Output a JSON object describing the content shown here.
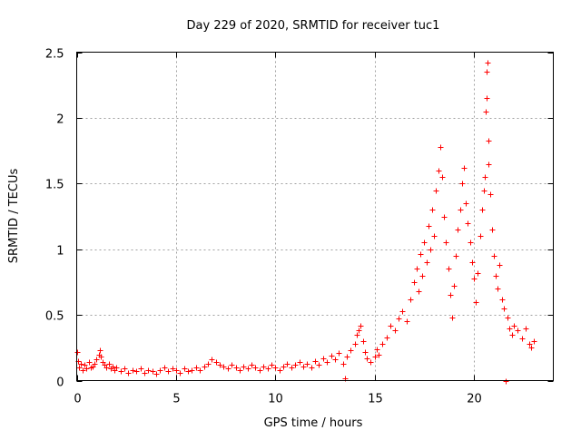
{
  "chart_data": {
    "type": "scatter",
    "title": "Day 229 of 2020, SRMTID for receiver tuc1",
    "xlabel": "GPS time / hours",
    "ylabel": "SRMTID / TECUs",
    "xlim": [
      0,
      24
    ],
    "ylim": [
      0,
      2.5
    ],
    "x_ticks": [
      0,
      5,
      10,
      15,
      20
    ],
    "y_ticks": [
      0,
      0.5,
      1,
      1.5,
      2,
      2.5
    ],
    "x_tick_labels": [
      "0",
      "5",
      "10",
      "15",
      "20"
    ],
    "y_tick_labels": [
      "0",
      "0.5",
      "1",
      "1.5",
      "2",
      "2.5"
    ],
    "grid": true,
    "marker": "+",
    "series_color": "#ff0000",
    "series": [
      {
        "name": "SRMTID",
        "points": [
          [
            0.0,
            0.22
          ],
          [
            0.05,
            0.15
          ],
          [
            0.1,
            0.1
          ],
          [
            0.2,
            0.13
          ],
          [
            0.3,
            0.08
          ],
          [
            0.4,
            0.12
          ],
          [
            0.5,
            0.09
          ],
          [
            0.6,
            0.14
          ],
          [
            0.7,
            0.1
          ],
          [
            0.8,
            0.11
          ],
          [
            0.9,
            0.13
          ],
          [
            1.0,
            0.16
          ],
          [
            1.1,
            0.2
          ],
          [
            1.15,
            0.23
          ],
          [
            1.2,
            0.18
          ],
          [
            1.3,
            0.14
          ],
          [
            1.4,
            0.12
          ],
          [
            1.5,
            0.1
          ],
          [
            1.6,
            0.13
          ],
          [
            1.7,
            0.09
          ],
          [
            1.8,
            0.11
          ],
          [
            1.9,
            0.08
          ],
          [
            2.0,
            0.1
          ],
          [
            2.2,
            0.07
          ],
          [
            2.4,
            0.09
          ],
          [
            2.6,
            0.06
          ],
          [
            2.8,
            0.08
          ],
          [
            3.0,
            0.07
          ],
          [
            3.2,
            0.09
          ],
          [
            3.4,
            0.06
          ],
          [
            3.6,
            0.08
          ],
          [
            3.8,
            0.07
          ],
          [
            4.0,
            0.05
          ],
          [
            4.2,
            0.08
          ],
          [
            4.4,
            0.1
          ],
          [
            4.6,
            0.07
          ],
          [
            4.8,
            0.09
          ],
          [
            5.0,
            0.08
          ],
          [
            5.2,
            0.06
          ],
          [
            5.4,
            0.09
          ],
          [
            5.6,
            0.07
          ],
          [
            5.8,
            0.08
          ],
          [
            6.0,
            0.1
          ],
          [
            6.2,
            0.08
          ],
          [
            6.4,
            0.11
          ],
          [
            6.6,
            0.13
          ],
          [
            6.8,
            0.16
          ],
          [
            7.0,
            0.14
          ],
          [
            7.2,
            0.12
          ],
          [
            7.4,
            0.11
          ],
          [
            7.6,
            0.09
          ],
          [
            7.8,
            0.12
          ],
          [
            8.0,
            0.1
          ],
          [
            8.2,
            0.08
          ],
          [
            8.4,
            0.11
          ],
          [
            8.6,
            0.09
          ],
          [
            8.8,
            0.12
          ],
          [
            9.0,
            0.1
          ],
          [
            9.2,
            0.08
          ],
          [
            9.4,
            0.11
          ],
          [
            9.6,
            0.09
          ],
          [
            9.8,
            0.12
          ],
          [
            10.0,
            0.1
          ],
          [
            10.2,
            0.08
          ],
          [
            10.4,
            0.11
          ],
          [
            10.6,
            0.13
          ],
          [
            10.8,
            0.1
          ],
          [
            11.0,
            0.12
          ],
          [
            11.2,
            0.14
          ],
          [
            11.4,
            0.11
          ],
          [
            11.6,
            0.13
          ],
          [
            11.8,
            0.1
          ],
          [
            12.0,
            0.15
          ],
          [
            12.2,
            0.12
          ],
          [
            12.4,
            0.17
          ],
          [
            12.6,
            0.14
          ],
          [
            12.8,
            0.19
          ],
          [
            13.0,
            0.16
          ],
          [
            13.2,
            0.21
          ],
          [
            13.4,
            0.13
          ],
          [
            13.5,
            0.02
          ],
          [
            13.6,
            0.18
          ],
          [
            13.8,
            0.23
          ],
          [
            14.0,
            0.28
          ],
          [
            14.1,
            0.35
          ],
          [
            14.2,
            0.38
          ],
          [
            14.3,
            0.42
          ],
          [
            14.4,
            0.3
          ],
          [
            14.5,
            0.22
          ],
          [
            14.6,
            0.17
          ],
          [
            14.8,
            0.14
          ],
          [
            15.0,
            0.18
          ],
          [
            15.1,
            0.24
          ],
          [
            15.2,
            0.2
          ],
          [
            15.4,
            0.28
          ],
          [
            15.6,
            0.33
          ],
          [
            15.8,
            0.42
          ],
          [
            16.0,
            0.38
          ],
          [
            16.2,
            0.47
          ],
          [
            16.4,
            0.53
          ],
          [
            16.6,
            0.45
          ],
          [
            16.8,
            0.62
          ],
          [
            17.0,
            0.75
          ],
          [
            17.1,
            0.85
          ],
          [
            17.2,
            0.68
          ],
          [
            17.3,
            0.96
          ],
          [
            17.4,
            0.8
          ],
          [
            17.5,
            1.05
          ],
          [
            17.6,
            0.9
          ],
          [
            17.7,
            1.18
          ],
          [
            17.8,
            1.0
          ],
          [
            17.9,
            1.3
          ],
          [
            18.0,
            1.1
          ],
          [
            18.1,
            1.45
          ],
          [
            18.2,
            1.6
          ],
          [
            18.3,
            1.78
          ],
          [
            18.4,
            1.55
          ],
          [
            18.5,
            1.25
          ],
          [
            18.6,
            1.05
          ],
          [
            18.7,
            0.85
          ],
          [
            18.8,
            0.65
          ],
          [
            18.9,
            0.48
          ],
          [
            19.0,
            0.72
          ],
          [
            19.1,
            0.95
          ],
          [
            19.2,
            1.15
          ],
          [
            19.3,
            1.3
          ],
          [
            19.4,
            1.5
          ],
          [
            19.5,
            1.62
          ],
          [
            19.6,
            1.35
          ],
          [
            19.7,
            1.2
          ],
          [
            19.8,
            1.05
          ],
          [
            19.9,
            0.9
          ],
          [
            20.0,
            0.78
          ],
          [
            20.1,
            0.6
          ],
          [
            20.2,
            0.82
          ],
          [
            20.3,
            1.1
          ],
          [
            20.4,
            1.3
          ],
          [
            20.5,
            1.45
          ],
          [
            20.55,
            1.55
          ],
          [
            20.6,
            2.05
          ],
          [
            20.62,
            2.15
          ],
          [
            20.65,
            2.35
          ],
          [
            20.7,
            2.42
          ],
          [
            20.72,
            1.83
          ],
          [
            20.75,
            1.65
          ],
          [
            20.8,
            1.42
          ],
          [
            20.9,
            1.15
          ],
          [
            21.0,
            0.95
          ],
          [
            21.1,
            0.8
          ],
          [
            21.2,
            0.7
          ],
          [
            21.3,
            0.88
          ],
          [
            21.4,
            0.62
          ],
          [
            21.5,
            0.55
          ],
          [
            21.6,
            0.0
          ],
          [
            21.7,
            0.48
          ],
          [
            21.8,
            0.4
          ],
          [
            21.9,
            0.35
          ],
          [
            22.0,
            0.42
          ],
          [
            22.2,
            0.38
          ],
          [
            22.4,
            0.32
          ],
          [
            22.6,
            0.4
          ],
          [
            22.8,
            0.28
          ],
          [
            22.9,
            0.25
          ],
          [
            23.0,
            0.3
          ]
        ]
      }
    ]
  }
}
